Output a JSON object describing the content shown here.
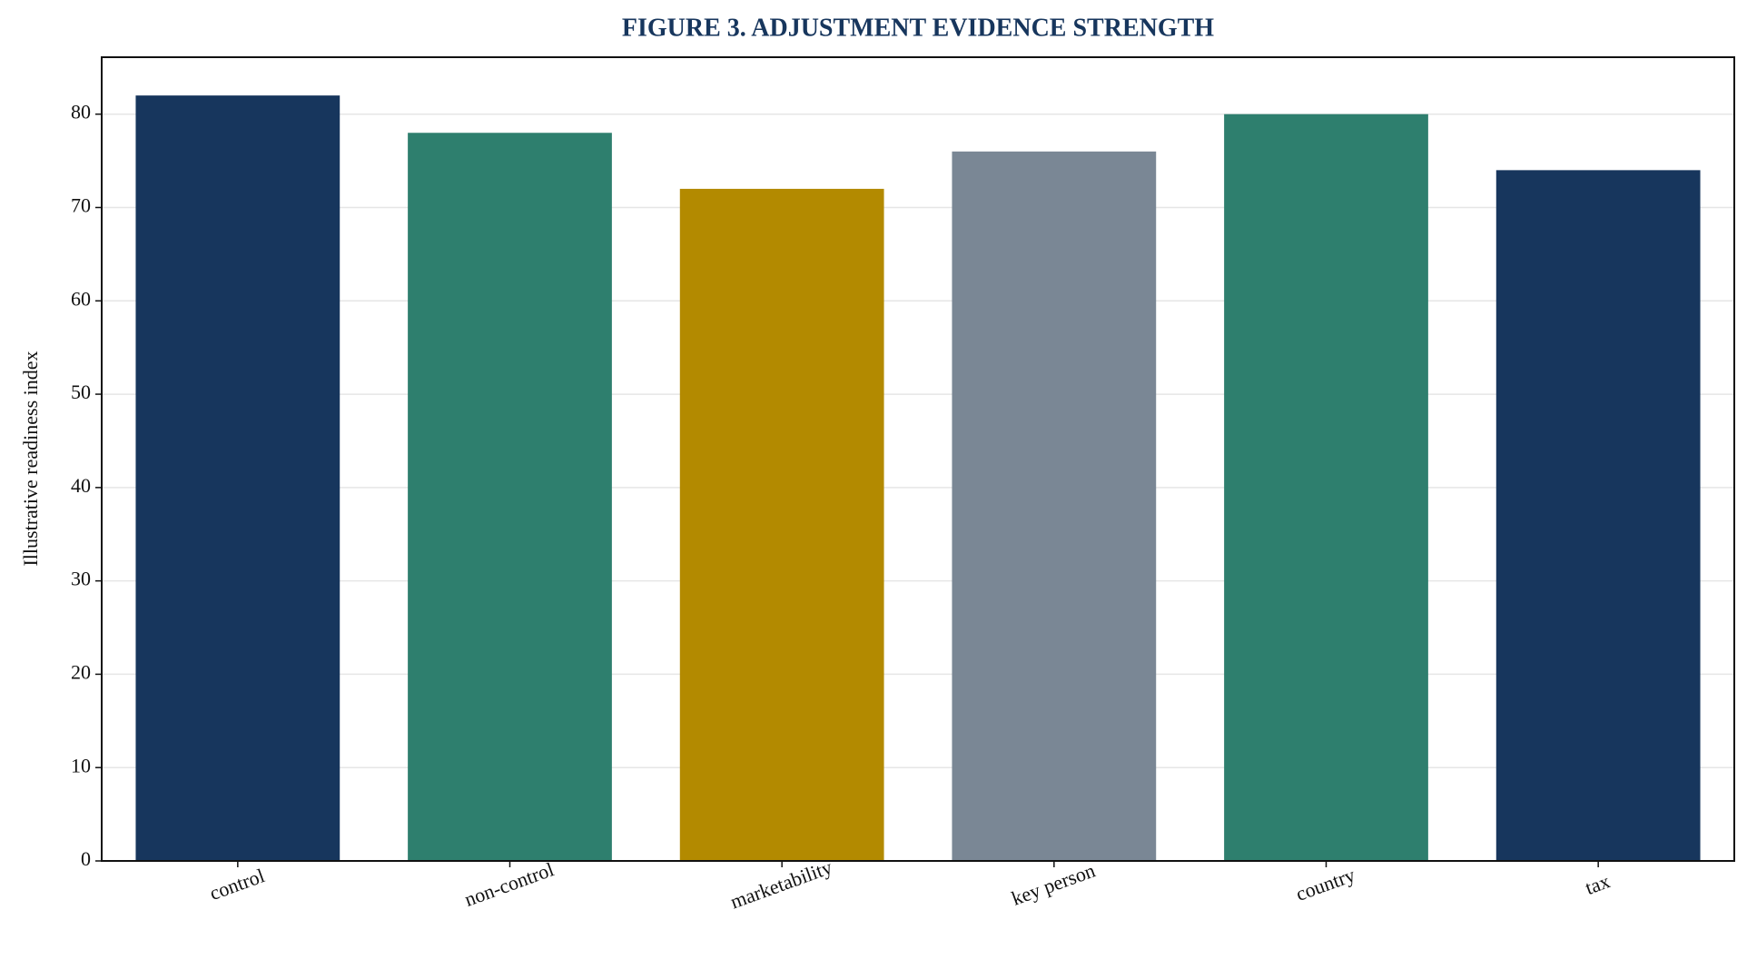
{
  "chart_data": {
    "type": "bar",
    "title": "FIGURE 3. ADJUSTMENT EVIDENCE STRENGTH",
    "y_label": "Illustrative readiness index",
    "categories": [
      "control",
      "non-control",
      "marketability",
      "key person",
      "country",
      "tax"
    ],
    "values": [
      82,
      78,
      72,
      76,
      80,
      74
    ],
    "colors": [
      "#17365d",
      "#2e7f6e",
      "#b38a00",
      "#7a8795",
      "#2e7f6e",
      "#17365d"
    ],
    "ylim": [
      0,
      86.1
    ],
    "yticks": [
      0,
      10,
      20,
      30,
      40,
      50,
      60,
      70,
      80
    ],
    "grid": true
  }
}
